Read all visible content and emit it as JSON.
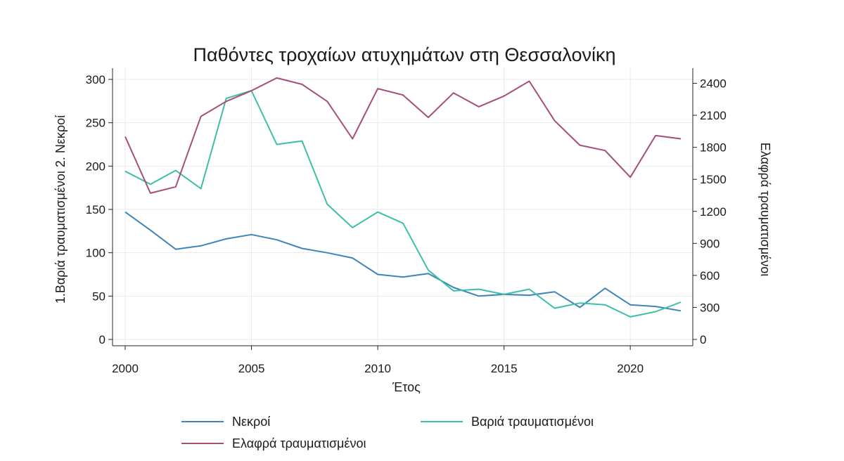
{
  "chart_data": {
    "type": "line",
    "title": "Παθόντες τροχαίων ατυχημάτων στη Θεσσαλονίκη",
    "xlabel": "Έτος",
    "ylabel_left": "1.Βαριά τραυματισμένοι 2. Νεκροί",
    "ylabel_right": "Ελαφρά τραυματισμένοι",
    "x": [
      2000,
      2001,
      2002,
      2003,
      2004,
      2005,
      2006,
      2007,
      2008,
      2009,
      2010,
      2011,
      2012,
      2013,
      2014,
      2015,
      2016,
      2017,
      2018,
      2019,
      2020,
      2021,
      2022
    ],
    "x_ticks": [
      2000,
      2005,
      2010,
      2015,
      2020
    ],
    "ylim_left": [
      0,
      300
    ],
    "y_ticks_left": [
      0,
      50,
      100,
      150,
      200,
      250,
      300
    ],
    "ylim_right": [
      0,
      2400
    ],
    "y_ticks_right": [
      0,
      300,
      600,
      900,
      1200,
      1500,
      1800,
      2100,
      2400
    ],
    "grid": true,
    "legend_position": "bottom",
    "series": [
      {
        "name": "Νεκροί",
        "axis": "left",
        "color": "#3d85b8",
        "values": [
          147,
          126,
          104,
          108,
          116,
          121,
          115,
          105,
          100,
          94,
          75,
          72,
          76,
          60,
          50,
          52,
          51,
          55,
          37,
          59,
          40,
          38,
          33
        ]
      },
      {
        "name": "Βαριά τραυματισμένοι",
        "axis": "left",
        "color": "#3dbfa7",
        "values": [
          194,
          179,
          195,
          174,
          278,
          287,
          225,
          229,
          156,
          129,
          147,
          134,
          80,
          56,
          58,
          52,
          58,
          36,
          42,
          40,
          26,
          32,
          43
        ]
      },
      {
        "name": "Ελαφρά τραυματισμένοι",
        "axis": "right",
        "color": "#a64d79",
        "values": [
          1900,
          1370,
          1430,
          2090,
          2230,
          2330,
          2450,
          2390,
          2230,
          1880,
          2350,
          2290,
          2080,
          2310,
          2180,
          2280,
          2420,
          2050,
          1820,
          1770,
          1520,
          1910,
          1880
        ]
      }
    ]
  }
}
